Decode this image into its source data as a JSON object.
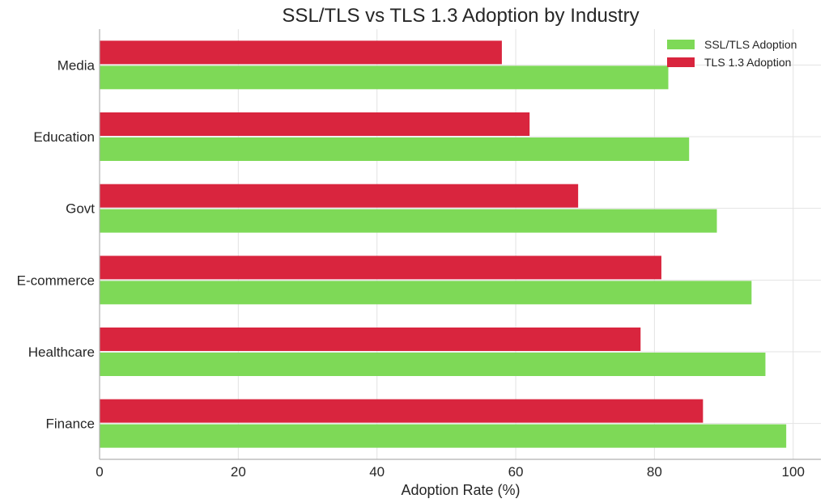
{
  "chart_data": {
    "type": "bar",
    "orientation": "horizontal",
    "title": "SSL/TLS vs TLS 1.3 Adoption by Industry",
    "xlabel": "Adoption Rate (%)",
    "ylabel": "",
    "xlim": [
      0,
      104
    ],
    "xticks": [
      0,
      20,
      40,
      60,
      80,
      100
    ],
    "categories": [
      "Finance",
      "Healthcare",
      "E-commerce",
      "Govt",
      "Education",
      "Media"
    ],
    "series": [
      {
        "name": "SSL/TLS Adoption",
        "color": "#7ed957",
        "values": [
          99,
          96,
          94,
          89,
          85,
          82
        ]
      },
      {
        "name": "TLS 1.3 Adoption",
        "color": "#d9253e",
        "values": [
          87,
          78,
          81,
          69,
          62,
          58
        ]
      }
    ],
    "grid": true,
    "legend_position": "top-right"
  }
}
